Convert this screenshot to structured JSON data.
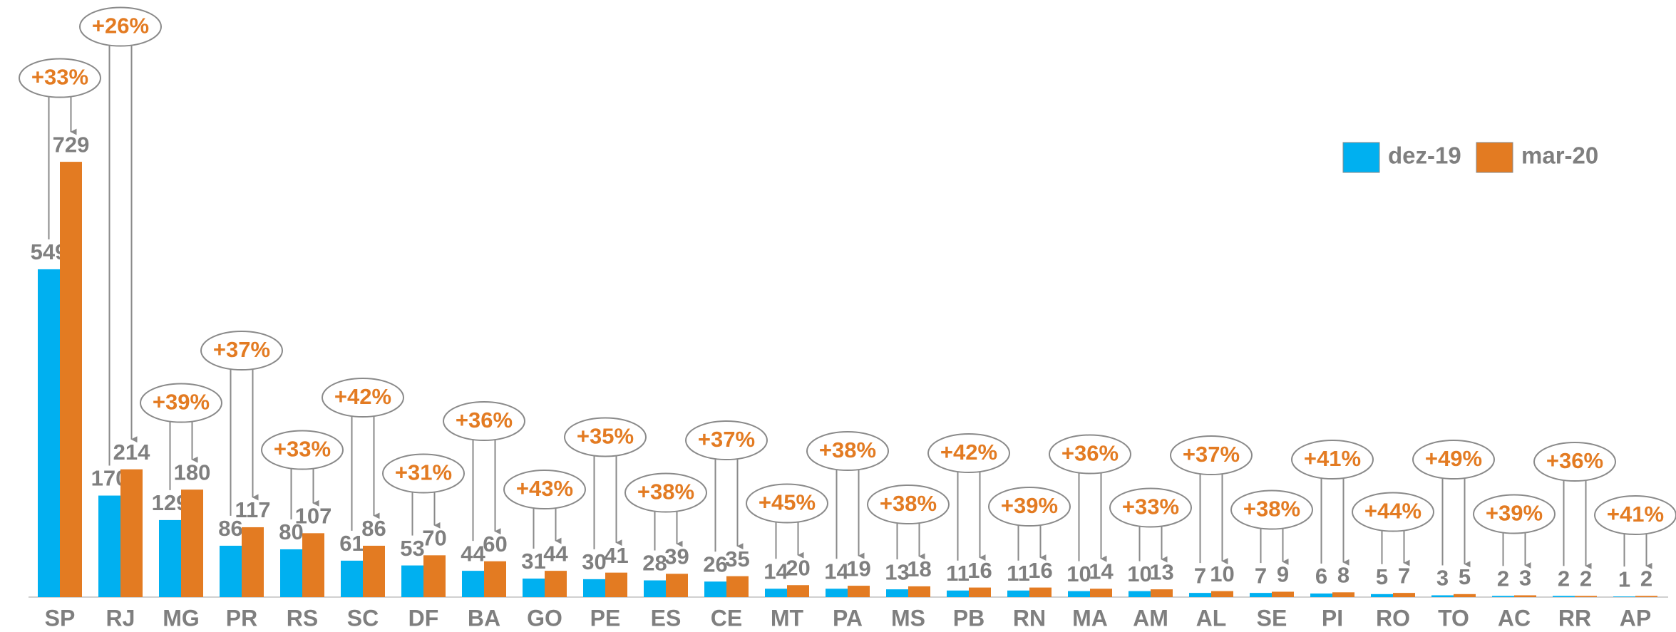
{
  "chart_data": {
    "type": "bar",
    "categories": [
      "SP",
      "RJ",
      "MG",
      "PR",
      "RS",
      "SC",
      "DF",
      "BA",
      "GO",
      "PE",
      "ES",
      "CE",
      "MT",
      "PA",
      "MS",
      "PB",
      "RN",
      "MA",
      "AM",
      "AL",
      "SE",
      "PI",
      "RO",
      "TO",
      "AC",
      "RR",
      "AP"
    ],
    "series": [
      {
        "name": "dez-19",
        "color": "#00b0f0",
        "values": [
          549,
          170,
          129,
          86,
          80,
          61,
          53,
          44,
          31,
          30,
          28,
          26,
          14,
          14,
          13,
          11,
          11,
          10,
          10,
          7,
          7,
          6,
          5,
          3,
          2,
          2,
          1
        ]
      },
      {
        "name": "mar-20",
        "color": "#e37b22",
        "values": [
          729,
          214,
          180,
          117,
          107,
          86,
          70,
          60,
          44,
          41,
          39,
          35,
          20,
          19,
          18,
          16,
          16,
          14,
          13,
          10,
          9,
          8,
          7,
          5,
          3,
          2,
          2
        ]
      }
    ],
    "annotations": [
      "+33%",
      "+26%",
      "+39%",
      "+37%",
      "+33%",
      "+42%",
      "+31%",
      "+36%",
      "+43%",
      "+35%",
      "+38%",
      "+37%",
      "+45%",
      "+38%",
      "+38%",
      "+42%",
      "+39%",
      "+36%",
      "+33%",
      "+37%",
      "+38%",
      "+41%",
      "+44%",
      "+49%",
      "+39%",
      "+36%",
      "+41%"
    ],
    "ylim": [
      0,
      1000
    ],
    "grid": false,
    "legend": "top-right"
  }
}
